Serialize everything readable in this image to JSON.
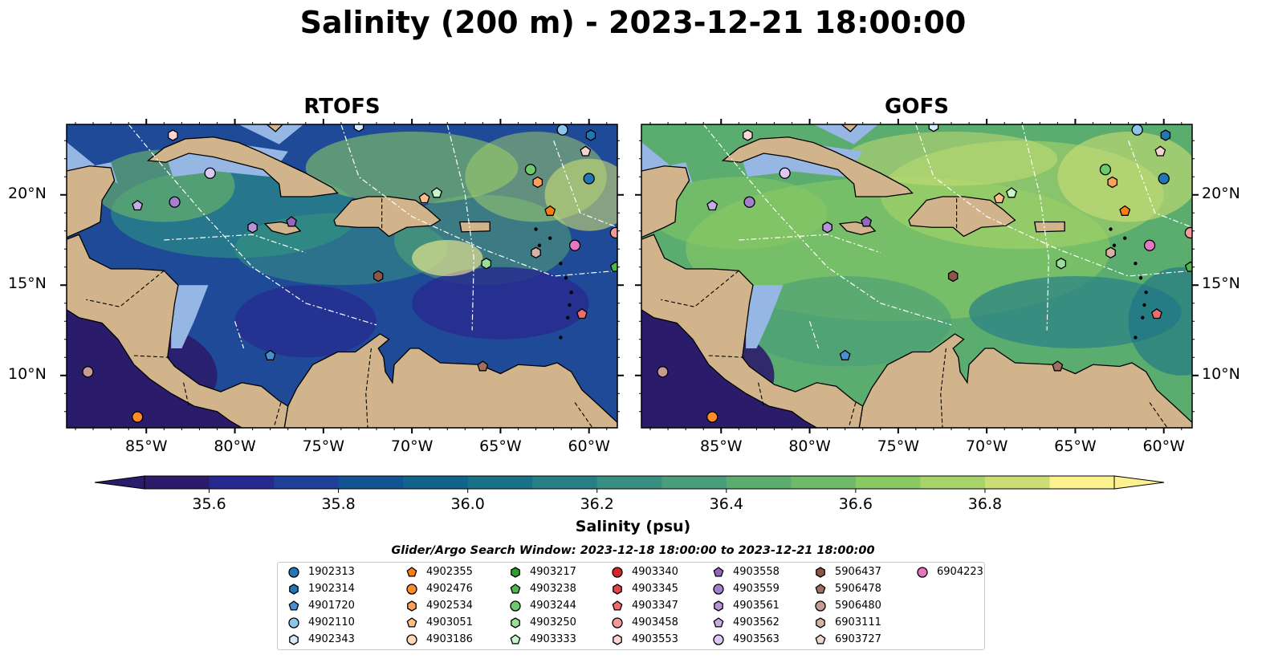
{
  "title": "Salinity (200 m) - 2023-12-21 18:00:00",
  "panels": [
    {
      "title": "RTOFS",
      "style": "rtofs"
    },
    {
      "title": "GOFS",
      "style": "gofs"
    }
  ],
  "lon_ticks": [
    "85°W",
    "80°W",
    "75°W",
    "70°W",
    "65°W",
    "60°W"
  ],
  "lat_ticks": [
    "20°N",
    "15°N",
    "10°N"
  ],
  "colorbar": {
    "label": "Salinity (psu)",
    "min": 35.5,
    "max": 37.0,
    "step": 0.1,
    "tick_values": [
      35.6,
      35.8,
      36.0,
      36.2,
      36.4,
      36.6,
      36.8
    ],
    "tick_labels": [
      "35.6",
      "35.8",
      "36.0",
      "36.2",
      "36.4",
      "36.6",
      "36.8"
    ],
    "colors": [
      "#2b1c6b",
      "#27298f",
      "#1f3f99",
      "#125391",
      "#12648c",
      "#197187",
      "#288086",
      "#388f81",
      "#4a9d7a",
      "#5aac6f",
      "#6fba68",
      "#89c964",
      "#a8d36a",
      "#cbdd74",
      "#fbf18f"
    ],
    "extend": "both"
  },
  "legend": {
    "title": "Glider/Argo Search Window: 2023-12-18 18:00:00 to 2023-12-21 18:00:00",
    "items": [
      {
        "label": "1902313",
        "color": "#1f77b4",
        "marker": "circle",
        "lon": -60.0,
        "lat": 20.9
      },
      {
        "label": "1902314",
        "color": "#1f77b4",
        "marker": "hexagon",
        "lon": -59.9,
        "lat": 23.3
      },
      {
        "label": "4901720",
        "color": "#4a8fcf",
        "marker": "pentagon",
        "lon": -78.0,
        "lat": 11.1
      },
      {
        "label": "4902110",
        "color": "#8cc4ec",
        "marker": "circle",
        "lon": -61.5,
        "lat": 23.6
      },
      {
        "label": "4902343",
        "color": "#d4e9fb",
        "marker": "hexagon",
        "lon": -73.0,
        "lat": 23.8
      },
      {
        "label": "4902355",
        "color": "#ff7f0e",
        "marker": "pentagon",
        "lon": -62.2,
        "lat": 19.1
      },
      {
        "label": "4902476",
        "color": "#ff8c2a",
        "marker": "circle",
        "lon": -85.5,
        "lat": 7.7
      },
      {
        "label": "4902534",
        "color": "#ffa05a",
        "marker": "hexagon",
        "lon": -62.9,
        "lat": 20.7
      },
      {
        "label": "4903051",
        "color": "#ffbe85",
        "marker": "pentagon",
        "lon": -69.3,
        "lat": 19.8
      },
      {
        "label": "4903186",
        "color": "#ffd9b5",
        "marker": "circle",
        "lon": -89.8,
        "lat": 9.5
      },
      {
        "label": "4903217",
        "color": "#2ca02c",
        "marker": "hexagon",
        "lon": -58.1,
        "lat": 18.7
      },
      {
        "label": "4903238",
        "color": "#4cb84c",
        "marker": "pentagon",
        "lon": -58.5,
        "lat": 16.0
      },
      {
        "label": "4903244",
        "color": "#6cc96c",
        "marker": "circle",
        "lon": -63.3,
        "lat": 21.4
      },
      {
        "label": "4903250",
        "color": "#98df98",
        "marker": "hexagon",
        "lon": -65.8,
        "lat": 16.2
      },
      {
        "label": "4903333",
        "color": "#c7f5c7",
        "marker": "pentagon",
        "lon": -68.6,
        "lat": 20.1
      },
      {
        "label": "4903340",
        "color": "#d62728",
        "marker": "circle",
        "lon": -57.8,
        "lat": 15.0
      },
      {
        "label": "4903345",
        "color": "#e2454a",
        "marker": "hexagon",
        "lon": -58.1,
        "lat": 21.8
      },
      {
        "label": "4903347",
        "color": "#ee6b6e",
        "marker": "pentagon",
        "lon": -60.4,
        "lat": 13.4
      },
      {
        "label": "4903458",
        "color": "#f59a9b",
        "marker": "circle",
        "lon": -58.5,
        "lat": 17.9
      },
      {
        "label": "4903553",
        "color": "#fcd4d5",
        "marker": "hexagon",
        "lon": -83.5,
        "lat": 23.3
      },
      {
        "label": "4903558",
        "color": "#9467bd",
        "marker": "pentagon",
        "lon": -76.8,
        "lat": 18.5
      },
      {
        "label": "4903559",
        "color": "#a47fcb",
        "marker": "circle",
        "lon": -83.4,
        "lat": 19.6
      },
      {
        "label": "4903561",
        "color": "#b595d8",
        "marker": "hexagon",
        "lon": -79.0,
        "lat": 18.2
      },
      {
        "label": "4903562",
        "color": "#c7abe6",
        "marker": "pentagon",
        "lon": -85.5,
        "lat": 19.4
      },
      {
        "label": "4903563",
        "color": "#dcc8f2",
        "marker": "circle",
        "lon": -81.4,
        "lat": 21.2
      },
      {
        "label": "5906437",
        "color": "#8c564b",
        "marker": "hexagon",
        "lon": -71.9,
        "lat": 15.5
      },
      {
        "label": "5906478",
        "color": "#a0705f",
        "marker": "pentagon",
        "lon": -66.0,
        "lat": 10.5
      },
      {
        "label": "5906480",
        "color": "#c49c94",
        "marker": "circle",
        "lon": -88.3,
        "lat": 10.2
      },
      {
        "label": "6903111",
        "color": "#d7b3a5",
        "marker": "hexagon",
        "lon": -63.0,
        "lat": 16.8
      },
      {
        "label": "6903727",
        "color": "#f2d6cd",
        "marker": "pentagon",
        "lon": -60.2,
        "lat": 22.4
      },
      {
        "label": "6904223",
        "color": "#e377c2",
        "marker": "circle",
        "lon": -60.8,
        "lat": 17.2
      }
    ]
  }
}
